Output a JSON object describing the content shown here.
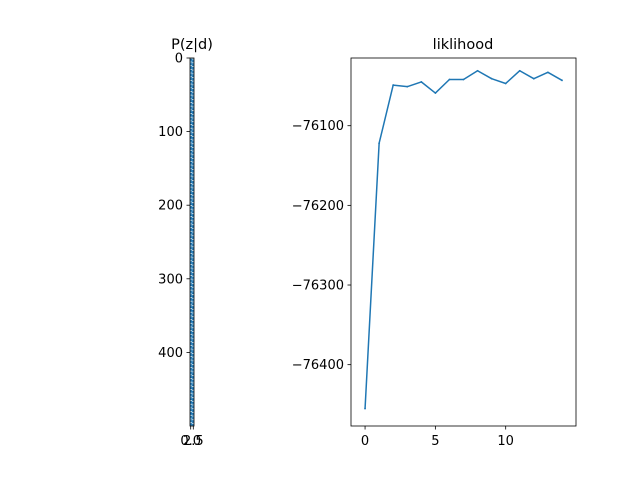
{
  "chart_data": [
    {
      "type": "heatmap",
      "title": "P(z|d)",
      "xlabel": "",
      "ylabel": "",
      "x_ticks": [
        "0.0",
        "2.5"
      ],
      "y_ticks": [
        0,
        100,
        200,
        300,
        400
      ],
      "rows": 500,
      "cols": 2,
      "ylim": [
        0,
        500
      ],
      "y_inverted": true,
      "colors": {
        "low": "#1f77b4",
        "high": "#d8ecf4"
      }
    },
    {
      "type": "line",
      "title": "liklihood",
      "xlabel": "",
      "ylabel": "",
      "xlim": [
        -1,
        15
      ],
      "ylim": [
        -76477,
        -76015
      ],
      "x_ticks": [
        0,
        5,
        10
      ],
      "y_ticks": [
        -76100,
        -76200,
        -76300,
        -76400
      ],
      "y_tick_labels": [
        "−76100",
        "−76200",
        "−76300",
        "−76400"
      ],
      "color": "#1f77b4",
      "x": [
        0,
        1,
        2,
        3,
        4,
        5,
        6,
        7,
        8,
        9,
        10,
        11,
        12,
        13,
        14
      ],
      "y": [
        -76455,
        -76122,
        -76049,
        -76051,
        -76045,
        -76059,
        -76042,
        -76042,
        -76031,
        -76041,
        -76047,
        -76031,
        -76041,
        -76033,
        -76043
      ]
    }
  ]
}
